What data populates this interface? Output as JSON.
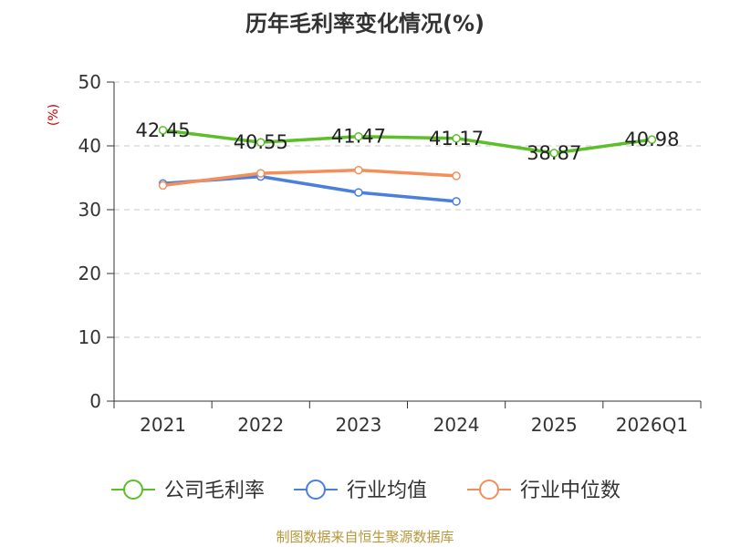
{
  "chart_data": {
    "type": "line",
    "title": "历年毛利率变化情况(%)",
    "ylabel": "(%)",
    "categories": [
      "2021",
      "2022",
      "2023",
      "2024",
      "2025",
      "2026Q1"
    ],
    "ylim": [
      0,
      50
    ],
    "yticks": [
      0,
      10,
      20,
      30,
      40,
      50
    ],
    "grid": true,
    "legend_position": "bottom",
    "series": [
      {
        "name": "公司毛利率",
        "color": "#5cbf2a",
        "values": [
          42.45,
          40.55,
          41.47,
          41.17,
          38.87,
          40.98
        ],
        "labels": [
          "42.45",
          "40.55",
          "41.47",
          "41.17",
          "38.87",
          "40.98"
        ]
      },
      {
        "name": "行业均值",
        "color": "#4a7fdc",
        "values": [
          34.1,
          35.2,
          32.7,
          31.3,
          null,
          null
        ]
      },
      {
        "name": "行业中位数",
        "color": "#f48e5b",
        "values": [
          33.8,
          35.7,
          36.2,
          35.3,
          null,
          null
        ]
      }
    ],
    "source": "制图数据来自恒生聚源数据库"
  }
}
